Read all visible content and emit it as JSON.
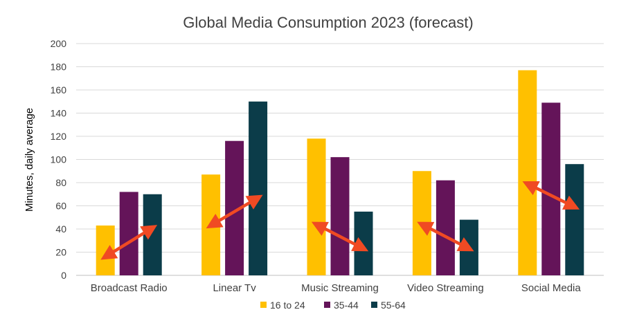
{
  "chart_data": {
    "type": "bar",
    "title": "Global Media Consumption 2023 (forecast)",
    "ylabel": "Minutes, daily average",
    "xlabel": "",
    "ylim": [
      0,
      200
    ],
    "yticks": [
      0,
      20,
      40,
      60,
      80,
      100,
      120,
      140,
      160,
      180,
      200
    ],
    "categories": [
      "Broadcast Radio",
      "Linear Tv",
      "Music Streaming",
      "Video Streaming",
      "Social Media"
    ],
    "series": [
      {
        "name": "16 to 24",
        "color": "#FFC000",
        "values": [
          43,
          87,
          118,
          90,
          177
        ]
      },
      {
        "name": "35-44",
        "color": "#641459",
        "values": [
          72,
          116,
          102,
          82,
          149
        ]
      },
      {
        "name": "55-64",
        "color": "#0B3C49",
        "values": [
          70,
          150,
          55,
          48,
          96
        ]
      }
    ],
    "grid": true,
    "legend_position": "bottom",
    "annotations": {
      "arrow_color": "#F04A23",
      "arrows": [
        {
          "category": "Broadcast Radio",
          "from_value": 16,
          "to_value": 41,
          "direction": "up"
        },
        {
          "category": "Linear Tv",
          "from_value": 43,
          "to_value": 67,
          "direction": "up"
        },
        {
          "category": "Music Streaming",
          "from_value": 44,
          "to_value": 23,
          "direction": "down"
        },
        {
          "category": "Video Streaming",
          "from_value": 44,
          "to_value": 23,
          "direction": "down"
        },
        {
          "category": "Social Media",
          "from_value": 79,
          "to_value": 59,
          "direction": "down"
        }
      ]
    }
  }
}
